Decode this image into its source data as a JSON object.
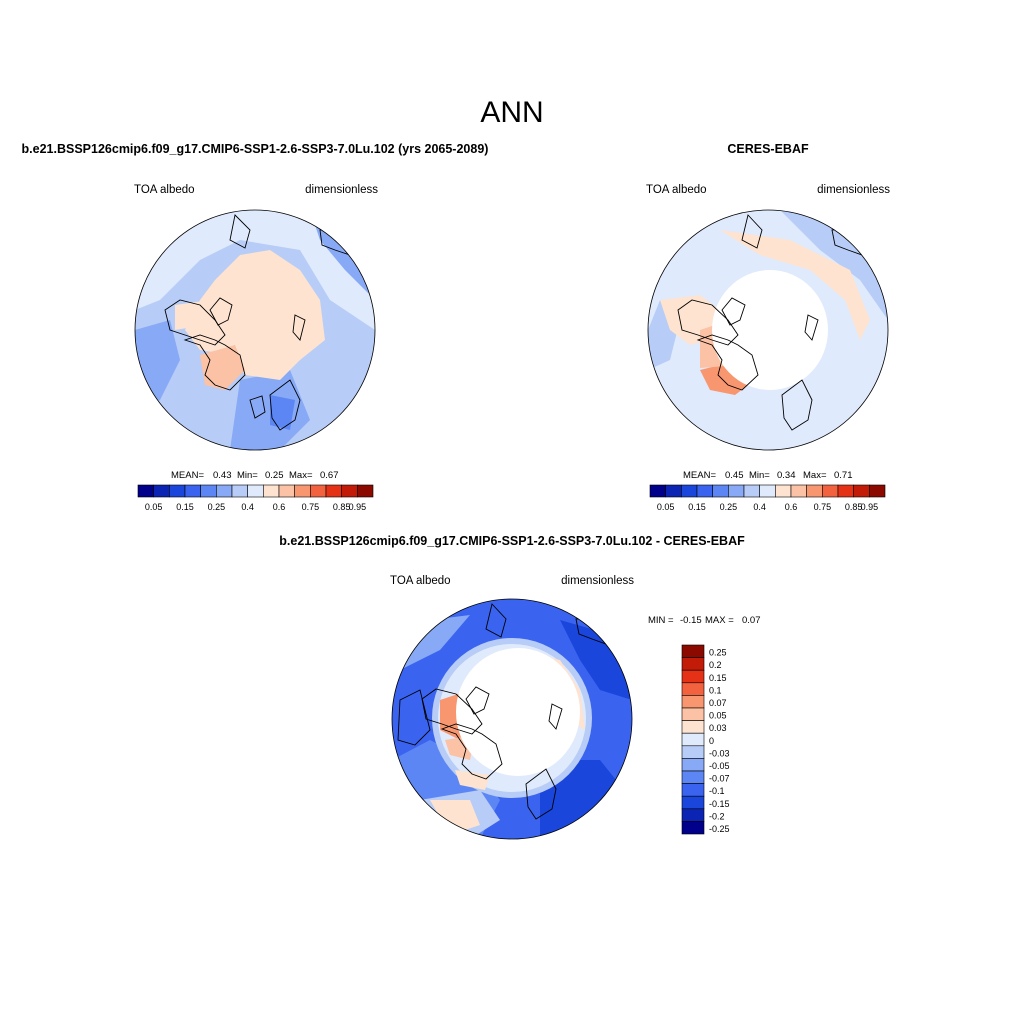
{
  "page_title": "ANN",
  "panels": [
    {
      "title": "b.e21.BSSP126cmip6.f09_g17.CMIP6-SSP1-2.6-SSP3-7.0Lu.102 (yrs 2065-2089)",
      "variable": "TOA albedo",
      "units": "dimensionless",
      "stats": {
        "mean_label": "MEAN=",
        "mean": "0.43",
        "min_label": "Min=",
        "min": "0.25",
        "max_label": "Max=",
        "max": "0.67"
      }
    },
    {
      "title": "CERES-EBAF",
      "variable": "TOA albedo",
      "units": "dimensionless",
      "stats": {
        "mean_label": "MEAN=",
        "mean": "0.45",
        "min_label": "Min=",
        "min": "0.34",
        "max_label": "Max=",
        "max": "0.71"
      }
    },
    {
      "title": "b.e21.BSSP126cmip6.f09_g17.CMIP6-SSP1-2.6-SSP3-7.0Lu.102 - CERES-EBAF",
      "variable": "TOA albedo",
      "units": "dimensionless",
      "stats": {
        "min_label": "MIN =",
        "min": "-0.15",
        "max_label": "MAX =",
        "max": "0.07"
      }
    }
  ],
  "colorbars": {
    "absolute": {
      "colors": [
        "#00008a",
        "#0b24b3",
        "#1a46db",
        "#3a64ef",
        "#5c86f4",
        "#87a9f6",
        "#b7ccf6",
        "#dfeafc",
        "#fde3d0",
        "#fbc2a6",
        "#f8976f",
        "#f3623f",
        "#e53217",
        "#c21b08",
        "#8c0900"
      ],
      "labels": [
        "0.05",
        "0.15",
        "0.25",
        "0.4",
        "0.6",
        "0.75",
        "0.85",
        "0.95"
      ]
    },
    "difference": {
      "colors": [
        "#8c0900",
        "#c21b08",
        "#e53217",
        "#f3623f",
        "#f8976f",
        "#fbc2a6",
        "#fde3d0",
        "#dfeafc",
        "#b7ccf6",
        "#87a9f6",
        "#5c86f4",
        "#3a64ef",
        "#1a46db",
        "#0b24b3",
        "#00008a"
      ],
      "labels": [
        "0.25",
        "0.2",
        "0.15",
        "0.1",
        "0.07",
        "0.05",
        "0.03",
        "0",
        "-0.03",
        "-0.05",
        "-0.07",
        "-0.1",
        "-0.15",
        "-0.2",
        "-0.25"
      ]
    }
  }
}
